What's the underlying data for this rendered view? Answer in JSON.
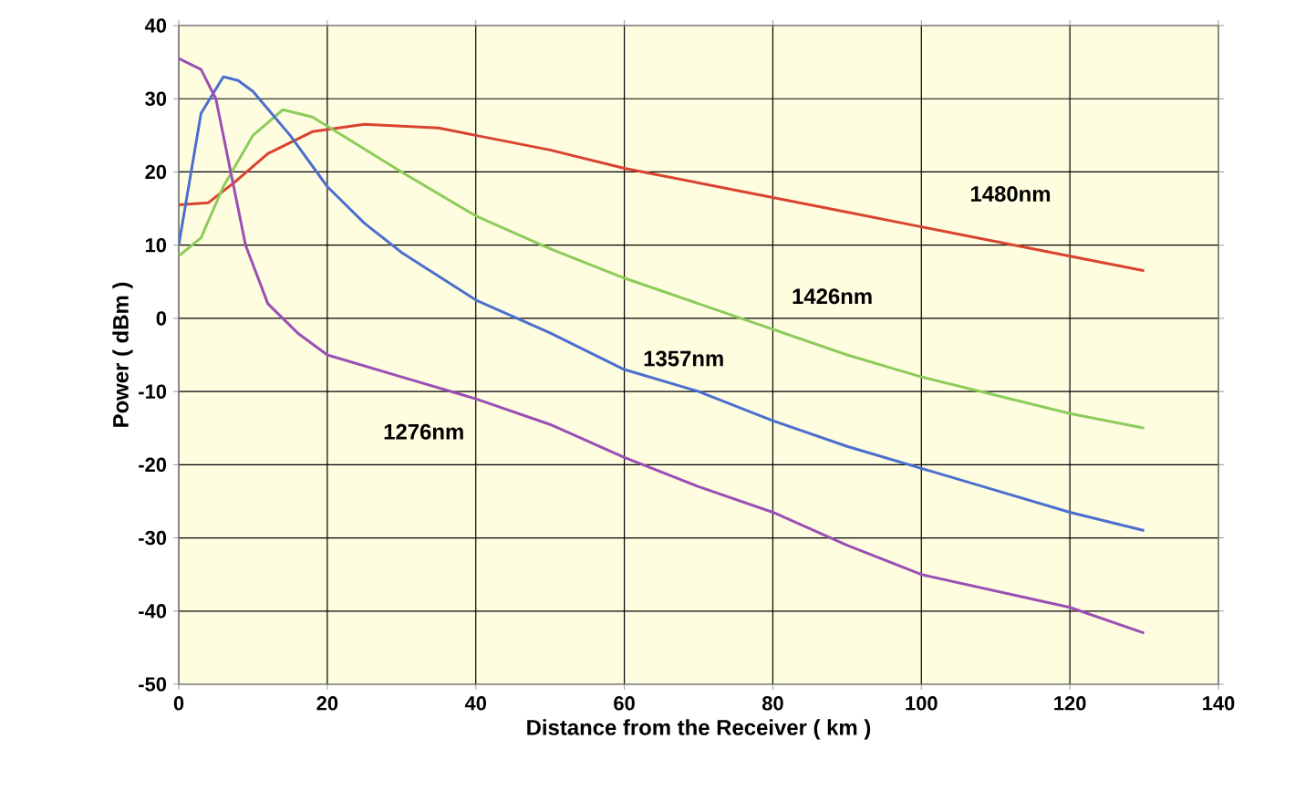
{
  "chart_data": {
    "type": "line",
    "xlabel": "Distance from the Receiver ( km )",
    "ylabel": "Power ( dBm )",
    "xlim": [
      0,
      140
    ],
    "ylim": [
      -50,
      40
    ],
    "xticks": [
      0,
      20,
      40,
      60,
      80,
      100,
      120,
      140
    ],
    "yticks": [
      -50,
      -40,
      -30,
      -20,
      -10,
      0,
      10,
      20,
      30,
      40
    ],
    "grid": true,
    "legend": false,
    "marker": "none",
    "line_style": "solid",
    "series": [
      {
        "name": "1480nm",
        "color": "#d9432f",
        "x": [
          0,
          4,
          8,
          12,
          18,
          25,
          35,
          40,
          50,
          60,
          70,
          80,
          90,
          100,
          110,
          120,
          130
        ],
        "values": [
          15.5,
          15.8,
          19,
          22.5,
          25.5,
          26.5,
          26,
          25,
          23,
          20.5,
          18.5,
          16.5,
          14.5,
          12.5,
          10.5,
          8.5,
          6.5
        ]
      },
      {
        "name": "1426nm",
        "color": "#8ccc5a",
        "x": [
          0,
          3,
          6,
          10,
          14,
          18,
          22,
          30,
          40,
          50,
          60,
          70,
          80,
          90,
          100,
          110,
          120,
          130
        ],
        "values": [
          8.5,
          11,
          18,
          25,
          28.5,
          27.5,
          25,
          20,
          14,
          9.5,
          5.5,
          2,
          -1.5,
          -5,
          -8,
          -10.5,
          -13,
          -15
        ]
      },
      {
        "name": "1357nm",
        "color": "#4a6fcf",
        "x": [
          0,
          3,
          6,
          8,
          10,
          15,
          20,
          25,
          30,
          40,
          50,
          60,
          70,
          80,
          90,
          100,
          110,
          120,
          130
        ],
        "values": [
          10,
          28,
          33,
          32.5,
          31,
          25,
          18,
          13,
          9,
          2.5,
          -2,
          -7,
          -10,
          -14,
          -17.5,
          -20.5,
          -23.5,
          -26.5,
          -29
        ]
      },
      {
        "name": "1276nm",
        "color": "#9b4fb5",
        "x": [
          0,
          3,
          5,
          7,
          9,
          12,
          16,
          20,
          30,
          40,
          50,
          60,
          70,
          80,
          90,
          100,
          120,
          130
        ],
        "values": [
          35.5,
          34,
          30,
          20,
          10,
          2,
          -2,
          -5,
          -8,
          -11,
          -14.5,
          -19,
          -23,
          -26.5,
          -31,
          -35,
          -39.5,
          -43
        ]
      }
    ]
  }
}
